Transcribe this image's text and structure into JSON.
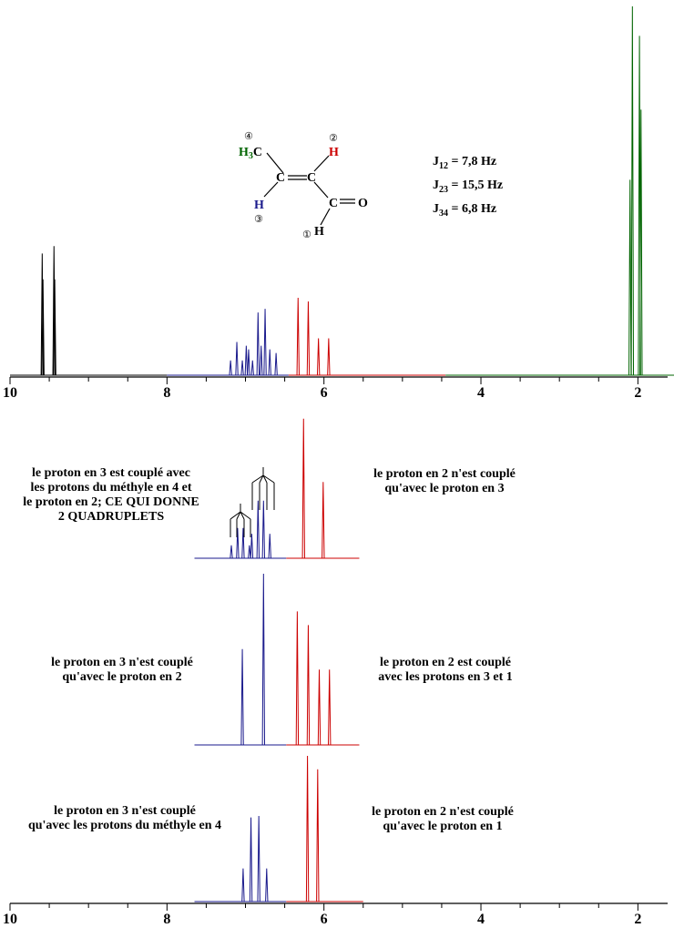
{
  "colors": {
    "black": "#000000",
    "green": "#006400",
    "blue": "#1a1a8c",
    "red": "#cc0000",
    "axis": "#000000"
  },
  "molecule": {
    "h3c": "H3C",
    "h2": "H",
    "h3": "H",
    "h1": "H",
    "c_a": "C",
    "c_b": "C",
    "c_c": "C",
    "o": "O",
    "n1": "①",
    "n2": "②",
    "n3": "③",
    "n4": "④"
  },
  "couplings": [
    {
      "label": "J12 = 7,8 Hz"
    },
    {
      "label": "J23 = 15,5 Hz"
    },
    {
      "label": "J34 = 6,8 Hz"
    }
  ],
  "annotations": {
    "row1_left": [
      "le proton en 3 est couplé avec",
      "les protons du méthyle en 4 et",
      "le proton en 2; CE QUI DONNE",
      "2 QUADRUPLETS"
    ],
    "row1_right": [
      "le proton en 2 n'est couplé",
      "qu'avec le proton en 3"
    ],
    "row2_left": [
      "le proton en 3 n'est couplé",
      "qu'avec le proton en 2"
    ],
    "row2_right": [
      "le proton en 2 est couplé",
      "avec les protons en 3 et 1"
    ],
    "row3_left": [
      "le proton en 3 n'est couplé",
      "qu'avec les protons du méthyle en 4"
    ],
    "row3_right": [
      "le proton en 2 n'est couplé",
      "qu'avec le proton en 1"
    ]
  },
  "chart_data": {
    "type": "line",
    "xlim": [
      10,
      1.5
    ],
    "x_ticks": [
      10,
      8,
      6,
      4,
      2
    ],
    "x_tick_labels": [
      "10",
      "8",
      "6",
      "4",
      "2"
    ],
    "spectra": [
      {
        "id": "full",
        "baseline_range": [
          10,
          1.5
        ],
        "segments": [
          {
            "color": "black",
            "range": [
              10,
              8.0
            ],
            "peaks": [
              [
                9.59,
                0.33
              ],
              [
                9.58,
                0.26
              ],
              [
                9.44,
                0.35
              ],
              [
                9.43,
                0.26
              ]
            ]
          },
          {
            "color": "blue",
            "range": [
              8.0,
              6.45
            ],
            "peaks": [
              [
                7.19,
                0.04
              ],
              [
                7.11,
                0.09
              ],
              [
                7.04,
                0.04
              ],
              [
                6.99,
                0.08
              ],
              [
                6.96,
                0.07
              ],
              [
                6.91,
                0.04
              ],
              [
                6.84,
                0.17
              ],
              [
                6.8,
                0.08
              ],
              [
                6.75,
                0.18
              ],
              [
                6.69,
                0.07
              ],
              [
                6.61,
                0.06
              ]
            ]
          },
          {
            "color": "red",
            "range": [
              6.45,
              4.45
            ],
            "peaks": [
              [
                6.33,
                0.21
              ],
              [
                6.2,
                0.2
              ],
              [
                6.07,
                0.1
              ],
              [
                5.94,
                0.1
              ]
            ]
          },
          {
            "color": "green",
            "range": [
              4.45,
              1.5
            ],
            "peaks": [
              [
                2.1,
                0.53
              ],
              [
                2.07,
                1.0
              ],
              [
                1.98,
                0.92
              ],
              [
                1.96,
                0.72
              ]
            ]
          }
        ]
      },
      {
        "id": "sim_3_coupled_4_and_2",
        "segments": [
          {
            "color": "blue",
            "range": [
              7.65,
              6.48
            ],
            "peaks": [
              [
                7.18,
                0.09
              ],
              [
                7.1,
                0.21
              ],
              [
                7.03,
                0.21
              ],
              [
                6.95,
                0.09
              ],
              [
                6.92,
                0.17
              ],
              [
                6.84,
                0.4
              ],
              [
                6.77,
                0.4
              ],
              [
                6.69,
                0.17
              ]
            ]
          },
          {
            "color": "red",
            "range": [
              6.48,
              5.55
            ],
            "peaks": [
              [
                6.26,
                0.97
              ],
              [
                6.01,
                0.53
              ]
            ]
          }
        ]
      },
      {
        "id": "sim_3_coupled_2",
        "segments": [
          {
            "color": "blue",
            "range": [
              7.65,
              6.48
            ],
            "peaks": [
              [
                7.04,
                0.56
              ],
              [
                6.77,
                1.0
              ]
            ]
          },
          {
            "color": "red",
            "range": [
              6.48,
              5.55
            ],
            "peaks": [
              [
                6.34,
                0.78
              ],
              [
                6.2,
                0.7
              ],
              [
                6.06,
                0.44
              ],
              [
                5.93,
                0.44
              ]
            ]
          }
        ]
      },
      {
        "id": "sim_3_coupled_4",
        "segments": [
          {
            "color": "blue",
            "range": [
              7.65,
              6.48
            ],
            "peaks": [
              [
                7.03,
                0.22
              ],
              [
                6.93,
                0.56
              ],
              [
                6.83,
                0.57
              ],
              [
                6.73,
                0.22
              ]
            ]
          },
          {
            "color": "red",
            "range": [
              6.48,
              5.5
            ],
            "peaks": [
              [
                6.21,
                0.97
              ],
              [
                6.08,
                0.88
              ]
            ]
          }
        ]
      }
    ]
  }
}
